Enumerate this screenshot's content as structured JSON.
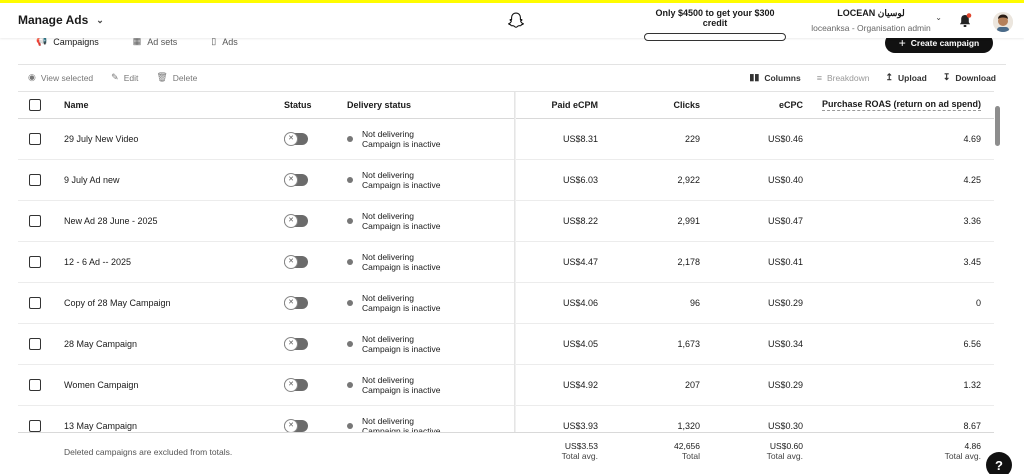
{
  "header": {
    "brand": "Manage Ads",
    "credit_text": "Only $4500 to get your $300 credit",
    "credit_progress": 0,
    "account_name": "LOCEAN لوسيان",
    "account_sub": "loceanksa - Organisation admin"
  },
  "tabs": [
    {
      "label": "Campaigns",
      "icon": "megaphone-icon"
    },
    {
      "label": "Ad sets",
      "icon": "grid-icon"
    },
    {
      "label": "Ads",
      "icon": "phone-icon"
    }
  ],
  "create_button": "Create campaign",
  "toolbar": {
    "view_selected": "View selected",
    "edit": "Edit",
    "delete": "Delete",
    "columns": "Columns",
    "breakdown": "Breakdown",
    "upload": "Upload",
    "download": "Download"
  },
  "columns": {
    "name": "Name",
    "status": "Status",
    "delivery": "Delivery status",
    "ecpm": "Paid eCPM",
    "clicks": "Clicks",
    "ecpc": "eCPC",
    "roas": "Purchase ROAS (return on ad spend)"
  },
  "rows": [
    {
      "name": "29 July New Video",
      "delivery": "Not delivering",
      "delivery_sub": "Campaign is inactive",
      "ecpm": "US$8.31",
      "clicks": "229",
      "ecpc": "US$0.46",
      "roas": "4.69"
    },
    {
      "name": "9 July Ad new",
      "delivery": "Not delivering",
      "delivery_sub": "Campaign is inactive",
      "ecpm": "US$6.03",
      "clicks": "2,922",
      "ecpc": "US$0.40",
      "roas": "4.25"
    },
    {
      "name": "New Ad 28 June - 2025",
      "delivery": "Not delivering",
      "delivery_sub": "Campaign is inactive",
      "ecpm": "US$8.22",
      "clicks": "2,991",
      "ecpc": "US$0.47",
      "roas": "3.36"
    },
    {
      "name": "12 - 6 Ad -- 2025",
      "delivery": "Not delivering",
      "delivery_sub": "Campaign is inactive",
      "ecpm": "US$4.47",
      "clicks": "2,178",
      "ecpc": "US$0.41",
      "roas": "3.45"
    },
    {
      "name": "Copy of 28 May Campaign",
      "delivery": "Not delivering",
      "delivery_sub": "Campaign is inactive",
      "ecpm": "US$4.06",
      "clicks": "96",
      "ecpc": "US$0.29",
      "roas": "0"
    },
    {
      "name": "28 May Campaign",
      "delivery": "Not delivering",
      "delivery_sub": "Campaign is inactive",
      "ecpm": "US$4.05",
      "clicks": "1,673",
      "ecpc": "US$0.34",
      "roas": "6.56"
    },
    {
      "name": "Women Campaign",
      "delivery": "Not delivering",
      "delivery_sub": "Campaign is inactive",
      "ecpm": "US$4.92",
      "clicks": "207",
      "ecpc": "US$0.29",
      "roas": "1.32"
    },
    {
      "name": "13 May Campaign",
      "delivery": "Not delivering",
      "delivery_sub": "Campaign is inactive",
      "ecpm": "US$3.93",
      "clicks": "1,320",
      "ecpc": "US$0.30",
      "roas": "8.67"
    }
  ],
  "footer": {
    "note": "Deleted campaigns are excluded from totals.",
    "ecpm": "US$3.53",
    "ecpm_label": "Total avg.",
    "clicks": "42,656",
    "clicks_label": "Total",
    "ecpc": "US$0.60",
    "ecpc_label": "Total avg.",
    "roas": "4.86",
    "roas_label": "Total avg."
  },
  "help_label": "?",
  "colors": {
    "accent_yellow": "#fffc00",
    "button_dark": "#111111",
    "toggle_off": "#6b6b6b"
  }
}
